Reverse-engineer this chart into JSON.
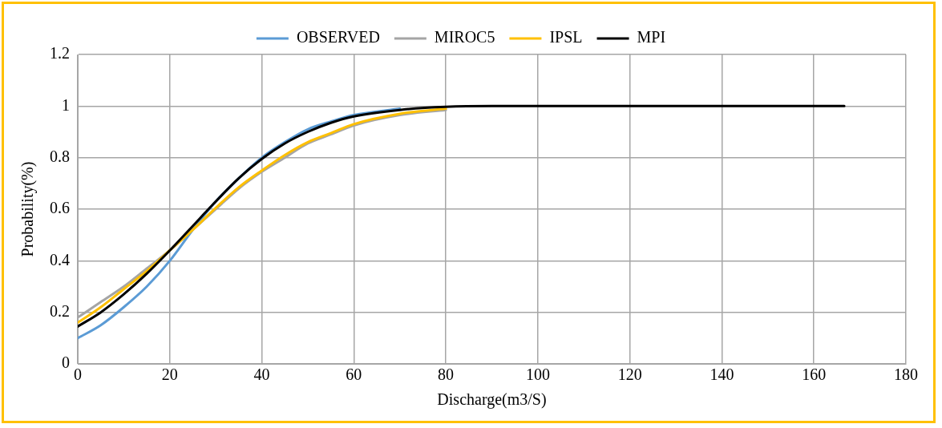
{
  "chart_data": {
    "type": "line",
    "xlabel": "Discharge(m3/S)",
    "ylabel": "Probability(%)",
    "xlim": [
      0,
      180
    ],
    "xticks": [
      0,
      20,
      40,
      60,
      80,
      100,
      120,
      140,
      160,
      180
    ],
    "ylim": [
      0,
      1.2
    ],
    "yticks": [
      0,
      0.2,
      0.4,
      0.6,
      0.8,
      1,
      1.2
    ],
    "grid": true,
    "legend": "top",
    "marker": "none",
    "line_style": "solid",
    "series": [
      {
        "name": "OBSERVED",
        "color": "#5b9bd5",
        "x": [
          0,
          5,
          10,
          15,
          20,
          25,
          30,
          35,
          40,
          45,
          50,
          55,
          60,
          70
        ],
        "values": [
          0.1,
          0.15,
          0.22,
          0.3,
          0.4,
          0.52,
          0.63,
          0.72,
          0.8,
          0.86,
          0.91,
          0.94,
          0.965,
          0.99
        ]
      },
      {
        "name": "MIROC5",
        "color": "#a5a5a5",
        "x": [
          0,
          5,
          10,
          15,
          20,
          25,
          30,
          35,
          40,
          45,
          50,
          55,
          60,
          70,
          80
        ],
        "values": [
          0.18,
          0.24,
          0.3,
          0.37,
          0.44,
          0.52,
          0.6,
          0.68,
          0.745,
          0.8,
          0.855,
          0.89,
          0.925,
          0.965,
          0.985
        ]
      },
      {
        "name": "IPSL",
        "color": "#ffc000",
        "x": [
          0,
          5,
          10,
          15,
          20,
          25,
          30,
          35,
          40,
          45,
          50,
          55,
          60,
          70,
          80
        ],
        "values": [
          0.16,
          0.22,
          0.29,
          0.36,
          0.44,
          0.52,
          0.605,
          0.685,
          0.75,
          0.81,
          0.86,
          0.895,
          0.93,
          0.97,
          0.99
        ]
      },
      {
        "name": "MPI",
        "color": "#000000",
        "x": [
          0,
          5,
          10,
          15,
          20,
          25,
          30,
          35,
          40,
          45,
          50,
          55,
          60,
          70,
          80,
          90,
          100,
          166.6
        ],
        "values": [
          0.145,
          0.2,
          0.27,
          0.35,
          0.44,
          0.535,
          0.63,
          0.72,
          0.795,
          0.855,
          0.9,
          0.935,
          0.96,
          0.985,
          0.997,
          1,
          1,
          1
        ]
      }
    ]
  }
}
